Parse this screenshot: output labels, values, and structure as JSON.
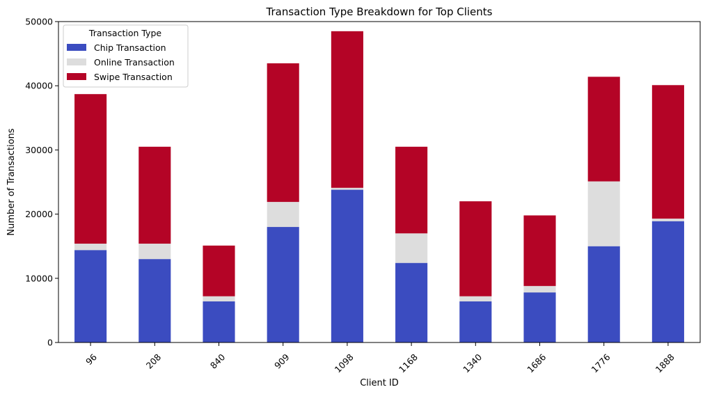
{
  "chart_data": {
    "type": "bar",
    "stacked": true,
    "title": "Transaction Type Breakdown for Top Clients",
    "xlabel": "Client ID",
    "ylabel": "Number of Transactions",
    "ylim": [
      0,
      50000
    ],
    "yticks": [
      0,
      10000,
      20000,
      30000,
      40000,
      50000
    ],
    "grid": false,
    "legend": {
      "title": "Transaction Type",
      "placement": "top-left"
    },
    "categories": [
      "96",
      "208",
      "840",
      "909",
      "1098",
      "1168",
      "1340",
      "1686",
      "1776",
      "1888"
    ],
    "series": [
      {
        "name": "Chip Transaction",
        "color": "#3b4cc0",
        "values": [
          14400,
          13000,
          6400,
          18000,
          23800,
          12400,
          6400,
          7800,
          15000,
          18900
        ]
      },
      {
        "name": "Online Transaction",
        "color": "#dddddd",
        "values": [
          1000,
          2400,
          800,
          3900,
          300,
          4600,
          800,
          1000,
          10100,
          400
        ]
      },
      {
        "name": "Swipe Transaction",
        "color": "#b40426",
        "values": [
          23300,
          15100,
          7900,
          21600,
          24400,
          13500,
          14800,
          11000,
          16300,
          20800
        ]
      }
    ]
  }
}
